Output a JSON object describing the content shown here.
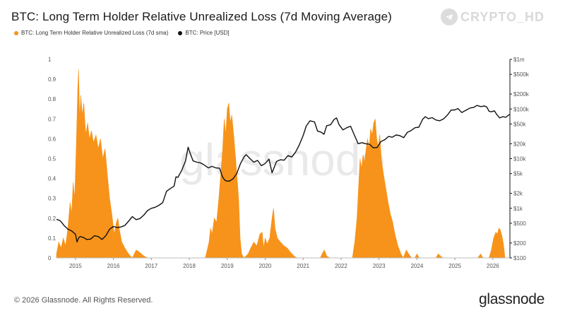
{
  "header": {
    "title": "BTC: Long Term Holder Relative Unrealized Loss (7d Moving Average)"
  },
  "legend": [
    {
      "label": "BTC: Long Term Holder Relative Unrealized Loss (7d sma)",
      "color": "#f7931a"
    },
    {
      "label": "BTC: Price [USD]",
      "color": "#111111"
    }
  ],
  "badge": {
    "text": "CRYPTO_HD",
    "icon": "telegram-icon"
  },
  "watermark": "glassnode",
  "footer": {
    "copyright": "© 2026 Glassnode. All Rights Reserved.",
    "brand": "glassnode"
  },
  "chart_data": {
    "type": "area",
    "x_ticks": [
      "2015",
      "2016",
      "2017",
      "2018",
      "2019",
      "2020",
      "2021",
      "2022",
      "2023",
      "2024",
      "2025",
      "2026"
    ],
    "y_left_ticks": [
      "0",
      "0.1",
      "0.2",
      "0.3",
      "0.4",
      "0.5",
      "0.6",
      "0.7",
      "0.8",
      "0.9",
      "1"
    ],
    "y_right_ticks": [
      {
        "label": "$100",
        "value": 100
      },
      {
        "label": "$200",
        "value": 200
      },
      {
        "label": "$500",
        "value": 500
      },
      {
        "label": "$1k",
        "value": 1000
      },
      {
        "label": "$2k",
        "value": 2000
      },
      {
        "label": "$5k",
        "value": 5000
      },
      {
        "label": "$10k",
        "value": 10000
      },
      {
        "label": "$20k",
        "value": 20000
      },
      {
        "label": "$50k",
        "value": 50000
      },
      {
        "label": "$100k",
        "value": 100000
      },
      {
        "label": "$200k",
        "value": 200000
      },
      {
        "label": "$500k",
        "value": 500000
      },
      {
        "label": "$1m",
        "value": 1000000
      }
    ],
    "ylim_left": [
      0,
      1
    ],
    "ylim_right": [
      100,
      1000000
    ],
    "y_right_scale": "log",
    "xlim": [
      2014.5,
      2026.45
    ],
    "grid": false,
    "series": [
      {
        "name": "BTC: Long Term Holder Relative Unrealized Loss (7d sma)",
        "color": "#f7931a",
        "type": "area",
        "points": [
          [
            2014.5,
            0.02
          ],
          [
            2014.56,
            0.08
          ],
          [
            2014.62,
            0.05
          ],
          [
            2014.68,
            0.1
          ],
          [
            2014.74,
            0.06
          ],
          [
            2014.8,
            0.15
          ],
          [
            2014.86,
            0.28
          ],
          [
            2014.9,
            0.22
          ],
          [
            2014.94,
            0.38
          ],
          [
            2014.98,
            0.3
          ],
          [
            2015.02,
            0.55
          ],
          [
            2015.06,
            0.85
          ],
          [
            2015.08,
            0.95
          ],
          [
            2015.11,
            0.7
          ],
          [
            2015.14,
            0.82
          ],
          [
            2015.18,
            0.72
          ],
          [
            2015.22,
            0.78
          ],
          [
            2015.27,
            0.62
          ],
          [
            2015.32,
            0.68
          ],
          [
            2015.37,
            0.6
          ],
          [
            2015.42,
            0.64
          ],
          [
            2015.48,
            0.58
          ],
          [
            2015.54,
            0.62
          ],
          [
            2015.6,
            0.55
          ],
          [
            2015.66,
            0.6
          ],
          [
            2015.72,
            0.5
          ],
          [
            2015.78,
            0.55
          ],
          [
            2015.84,
            0.42
          ],
          [
            2015.9,
            0.3
          ],
          [
            2015.96,
            0.22
          ],
          [
            2016.02,
            0.12
          ],
          [
            2016.08,
            0.18
          ],
          [
            2016.12,
            0.2
          ],
          [
            2016.16,
            0.14
          ],
          [
            2016.22,
            0.08
          ],
          [
            2016.3,
            0.05
          ],
          [
            2016.4,
            0.02
          ],
          [
            2016.5,
            0.0
          ],
          [
            2016.6,
            0.04
          ],
          [
            2016.68,
            0.03
          ],
          [
            2016.8,
            0.01
          ],
          [
            2016.9,
            0.0
          ],
          [
            2018.42,
            0.0
          ],
          [
            2018.46,
            0.03
          ],
          [
            2018.52,
            0.08
          ],
          [
            2018.56,
            0.15
          ],
          [
            2018.6,
            0.12
          ],
          [
            2018.66,
            0.2
          ],
          [
            2018.72,
            0.18
          ],
          [
            2018.78,
            0.3
          ],
          [
            2018.84,
            0.45
          ],
          [
            2018.88,
            0.55
          ],
          [
            2018.92,
            0.7
          ],
          [
            2018.96,
            0.62
          ],
          [
            2019.0,
            0.75
          ],
          [
            2019.04,
            0.78
          ],
          [
            2019.08,
            0.68
          ],
          [
            2019.12,
            0.72
          ],
          [
            2019.18,
            0.6
          ],
          [
            2019.24,
            0.45
          ],
          [
            2019.3,
            0.3
          ],
          [
            2019.34,
            0.1
          ],
          [
            2019.38,
            0.02
          ],
          [
            2019.44,
            0.0
          ],
          [
            2019.55,
            0.02
          ],
          [
            2019.62,
            0.05
          ],
          [
            2019.7,
            0.08
          ],
          [
            2019.78,
            0.06
          ],
          [
            2019.86,
            0.12
          ],
          [
            2019.92,
            0.13
          ],
          [
            2019.96,
            0.05
          ],
          [
            2020.0,
            0.1
          ],
          [
            2020.05,
            0.07
          ],
          [
            2020.12,
            0.1
          ],
          [
            2020.18,
            0.2
          ],
          [
            2020.22,
            0.25
          ],
          [
            2020.26,
            0.15
          ],
          [
            2020.32,
            0.1
          ],
          [
            2020.4,
            0.08
          ],
          [
            2020.5,
            0.06
          ],
          [
            2020.58,
            0.05
          ],
          [
            2020.66,
            0.03
          ],
          [
            2020.76,
            0.01
          ],
          [
            2020.84,
            0.0
          ],
          [
            2021.45,
            0.0
          ],
          [
            2021.5,
            0.02
          ],
          [
            2021.56,
            0.04
          ],
          [
            2021.62,
            0.01
          ],
          [
            2021.7,
            0.0
          ],
          [
            2022.3,
            0.0
          ],
          [
            2022.36,
            0.08
          ],
          [
            2022.42,
            0.2
          ],
          [
            2022.46,
            0.35
          ],
          [
            2022.5,
            0.5
          ],
          [
            2022.54,
            0.45
          ],
          [
            2022.58,
            0.52
          ],
          [
            2022.62,
            0.48
          ],
          [
            2022.66,
            0.55
          ],
          [
            2022.7,
            0.6
          ],
          [
            2022.74,
            0.55
          ],
          [
            2022.78,
            0.65
          ],
          [
            2022.82,
            0.62
          ],
          [
            2022.86,
            0.68
          ],
          [
            2022.9,
            0.7
          ],
          [
            2022.94,
            0.6
          ],
          [
            2022.98,
            0.56
          ],
          [
            2023.02,
            0.62
          ],
          [
            2023.06,
            0.5
          ],
          [
            2023.12,
            0.42
          ],
          [
            2023.18,
            0.35
          ],
          [
            2023.24,
            0.28
          ],
          [
            2023.3,
            0.22
          ],
          [
            2023.36,
            0.18
          ],
          [
            2023.42,
            0.12
          ],
          [
            2023.5,
            0.06
          ],
          [
            2023.58,
            0.02
          ],
          [
            2023.64,
            0.0
          ],
          [
            2023.72,
            0.04
          ],
          [
            2023.78,
            0.02
          ],
          [
            2023.86,
            0.0
          ],
          [
            2023.94,
            0.0
          ],
          [
            2024.0,
            0.02
          ],
          [
            2024.06,
            0.0
          ],
          [
            2024.5,
            0.0
          ],
          [
            2024.56,
            0.02
          ],
          [
            2024.62,
            0.01
          ],
          [
            2024.68,
            0.0
          ],
          [
            2025.6,
            0.0
          ],
          [
            2025.68,
            0.02
          ],
          [
            2025.74,
            0.0
          ],
          [
            2025.9,
            0.0
          ],
          [
            2025.96,
            0.04
          ],
          [
            2026.02,
            0.1
          ],
          [
            2026.08,
            0.13
          ],
          [
            2026.12,
            0.12
          ],
          [
            2026.16,
            0.15
          ],
          [
            2026.2,
            0.14
          ],
          [
            2026.24,
            0.11
          ],
          [
            2026.28,
            0.07
          ],
          [
            2026.32,
            0.0
          ]
        ]
      },
      {
        "name": "BTC: Price [USD]",
        "color": "#111111",
        "type": "line",
        "points": [
          [
            2014.5,
            600
          ],
          [
            2014.6,
            560
          ],
          [
            2014.7,
            450
          ],
          [
            2014.8,
            380
          ],
          [
            2014.9,
            350
          ],
          [
            2015.0,
            300
          ],
          [
            2015.04,
            210
          ],
          [
            2015.08,
            250
          ],
          [
            2015.12,
            270
          ],
          [
            2015.2,
            260
          ],
          [
            2015.3,
            235
          ],
          [
            2015.4,
            240
          ],
          [
            2015.5,
            280
          ],
          [
            2015.6,
            270
          ],
          [
            2015.7,
            235
          ],
          [
            2015.8,
            280
          ],
          [
            2015.9,
            380
          ],
          [
            2016.0,
            430
          ],
          [
            2016.1,
            410
          ],
          [
            2016.2,
            420
          ],
          [
            2016.3,
            450
          ],
          [
            2016.4,
            550
          ],
          [
            2016.5,
            680
          ],
          [
            2016.6,
            590
          ],
          [
            2016.7,
            620
          ],
          [
            2016.8,
            730
          ],
          [
            2016.9,
            900
          ],
          [
            2017.0,
            1000
          ],
          [
            2017.1,
            1050
          ],
          [
            2017.2,
            1150
          ],
          [
            2017.3,
            1300
          ],
          [
            2017.4,
            2200
          ],
          [
            2017.5,
            2500
          ],
          [
            2017.6,
            2800
          ],
          [
            2017.65,
            4300
          ],
          [
            2017.7,
            4200
          ],
          [
            2017.8,
            5800
          ],
          [
            2017.9,
            9000
          ],
          [
            2017.97,
            17000
          ],
          [
            2018.02,
            13000
          ],
          [
            2018.1,
            9000
          ],
          [
            2018.2,
            8500
          ],
          [
            2018.3,
            8200
          ],
          [
            2018.4,
            7400
          ],
          [
            2018.5,
            6500
          ],
          [
            2018.6,
            7000
          ],
          [
            2018.7,
            6500
          ],
          [
            2018.8,
            6400
          ],
          [
            2018.88,
            4200
          ],
          [
            2018.95,
            3600
          ],
          [
            2019.05,
            3500
          ],
          [
            2019.15,
            3900
          ],
          [
            2019.25,
            5000
          ],
          [
            2019.35,
            8000
          ],
          [
            2019.45,
            11000
          ],
          [
            2019.5,
            12000
          ],
          [
            2019.6,
            10000
          ],
          [
            2019.7,
            8500
          ],
          [
            2019.8,
            9200
          ],
          [
            2019.9,
            7200
          ],
          [
            2020.0,
            8000
          ],
          [
            2020.1,
            9800
          ],
          [
            2020.18,
            5200
          ],
          [
            2020.3,
            8800
          ],
          [
            2020.4,
            9500
          ],
          [
            2020.5,
            9300
          ],
          [
            2020.6,
            11500
          ],
          [
            2020.7,
            10800
          ],
          [
            2020.8,
            13500
          ],
          [
            2020.9,
            19000
          ],
          [
            2021.0,
            29000
          ],
          [
            2021.08,
            45000
          ],
          [
            2021.18,
            58000
          ],
          [
            2021.3,
            55000
          ],
          [
            2021.38,
            36000
          ],
          [
            2021.48,
            34000
          ],
          [
            2021.55,
            31000
          ],
          [
            2021.62,
            46000
          ],
          [
            2021.72,
            48000
          ],
          [
            2021.82,
            62000
          ],
          [
            2021.88,
            66000
          ],
          [
            2021.95,
            48000
          ],
          [
            2022.05,
            38000
          ],
          [
            2022.15,
            42000
          ],
          [
            2022.25,
            45000
          ],
          [
            2022.35,
            30000
          ],
          [
            2022.45,
            20000
          ],
          [
            2022.55,
            21000
          ],
          [
            2022.65,
            20000
          ],
          [
            2022.75,
            19500
          ],
          [
            2022.85,
            16500
          ],
          [
            2022.95,
            16800
          ],
          [
            2023.05,
            22000
          ],
          [
            2023.15,
            24000
          ],
          [
            2023.25,
            28000
          ],
          [
            2023.35,
            27000
          ],
          [
            2023.45,
            30000
          ],
          [
            2023.55,
            29000
          ],
          [
            2023.65,
            26500
          ],
          [
            2023.75,
            34000
          ],
          [
            2023.85,
            37000
          ],
          [
            2023.95,
            42000
          ],
          [
            2024.05,
            43000
          ],
          [
            2024.15,
            62000
          ],
          [
            2024.22,
            70000
          ],
          [
            2024.3,
            64000
          ],
          [
            2024.4,
            67000
          ],
          [
            2024.5,
            60000
          ],
          [
            2024.6,
            58000
          ],
          [
            2024.7,
            63000
          ],
          [
            2024.8,
            75000
          ],
          [
            2024.9,
            95000
          ],
          [
            2025.0,
            96000
          ],
          [
            2025.08,
            102000
          ],
          [
            2025.18,
            85000
          ],
          [
            2025.3,
            95000
          ],
          [
            2025.4,
            105000
          ],
          [
            2025.5,
            108000
          ],
          [
            2025.58,
            118000
          ],
          [
            2025.68,
            112000
          ],
          [
            2025.78,
            115000
          ],
          [
            2025.84,
            110000
          ],
          [
            2025.9,
            90000
          ],
          [
            2025.96,
            88000
          ],
          [
            2026.04,
            92000
          ],
          [
            2026.1,
            78000
          ],
          [
            2026.18,
            66000
          ],
          [
            2026.26,
            70000
          ],
          [
            2026.34,
            68000
          ],
          [
            2026.4,
            74000
          ],
          [
            2026.45,
            78000
          ]
        ]
      }
    ]
  }
}
